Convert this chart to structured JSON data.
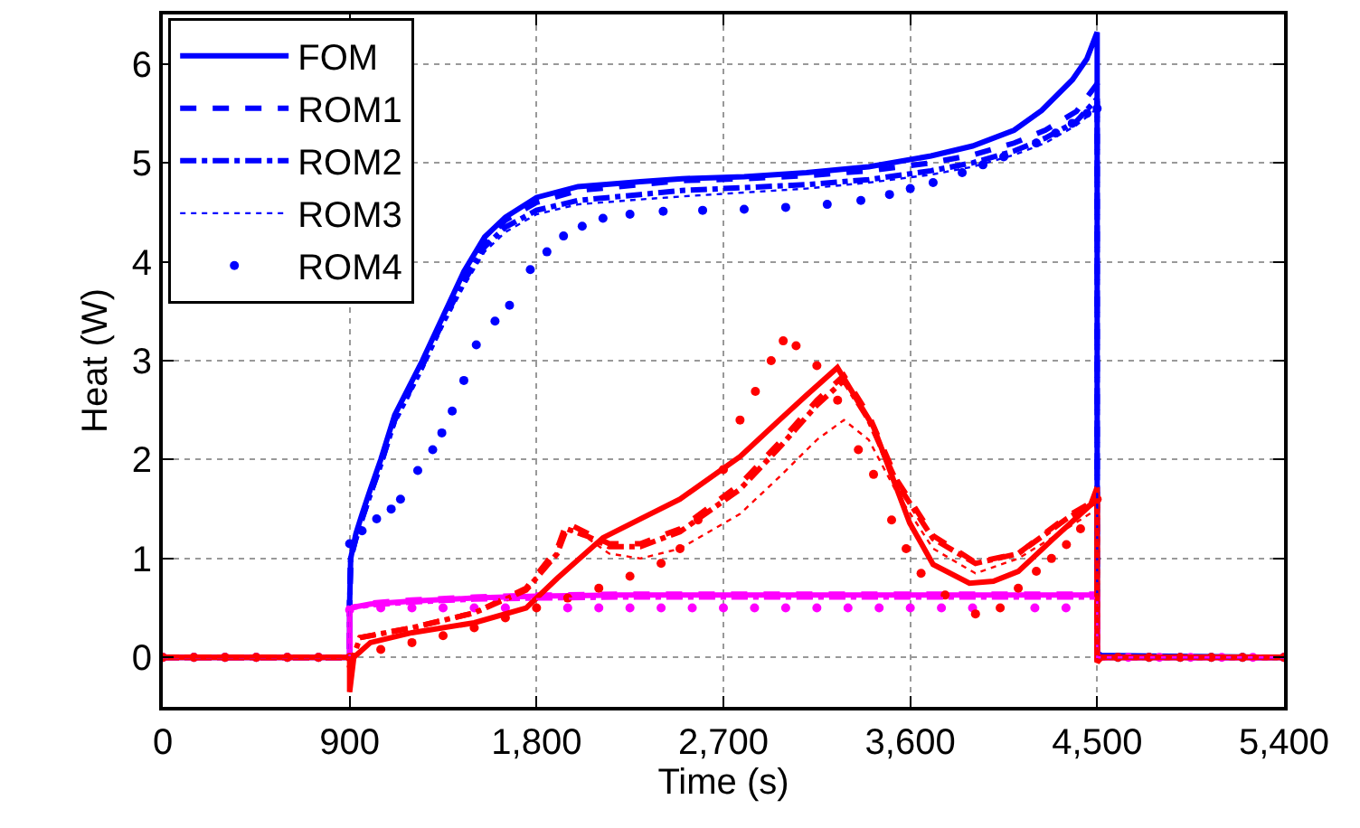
{
  "chart_data": {
    "type": "line",
    "xlabel": "Time (s)",
    "ylabel": "Heat (W)",
    "xlim": [
      0,
      5400
    ],
    "xticks": [
      0,
      900,
      {
        "value": 1800,
        "label": "1,800"
      },
      {
        "value": 2700,
        "label": "2,700"
      },
      {
        "value": 3600,
        "label": "3,600"
      },
      {
        "value": 4500,
        "label": "4,500"
      },
      {
        "value": 5400,
        "label": "5,400"
      }
    ],
    "ylim": [
      -0.5,
      6.5
    ],
    "yticks": [
      0,
      1,
      2,
      3,
      4,
      5,
      6
    ],
    "grid": true,
    "legend": "top left",
    "series": [
      {
        "name": "FOM",
        "color": "#0000ff",
        "line_style": "solid",
        "x": [
          0,
          900,
          900,
          905,
          930,
          960,
          1000,
          1050,
          1117,
          1250,
          1350,
          1450,
          1550,
          1650,
          1800,
          2000,
          2300,
          2500,
          2800,
          3100,
          3400,
          3700,
          3900,
          4100,
          4233,
          4381,
          4450,
          4500,
          4500,
          4520,
          5400
        ],
        "values": [
          0,
          0,
          0.55,
          1.0,
          1.25,
          1.45,
          1.7,
          2.0,
          2.45,
          3.0,
          3.45,
          3.9,
          4.25,
          4.45,
          4.65,
          4.76,
          4.81,
          4.84,
          4.86,
          4.9,
          4.96,
          5.07,
          5.17,
          5.33,
          5.53,
          5.84,
          6.05,
          6.32,
          0.05,
          0.02,
          0
        ]
      },
      {
        "name": "ROM1",
        "color": "#0000ff",
        "line_style": "dashed",
        "x": [
          0,
          900,
          900,
          905,
          930,
          960,
          1000,
          1050,
          1117,
          1250,
          1350,
          1450,
          1550,
          1650,
          1800,
          2000,
          2300,
          2500,
          2800,
          3100,
          3400,
          3700,
          3900,
          4100,
          4250,
          4400,
          4500,
          4500,
          5400
        ],
        "values": [
          0,
          0,
          0.55,
          1.0,
          1.2,
          1.4,
          1.65,
          1.95,
          2.4,
          2.95,
          3.4,
          3.85,
          4.2,
          4.42,
          4.6,
          4.72,
          4.78,
          4.82,
          4.84,
          4.87,
          4.92,
          5.0,
          5.08,
          5.2,
          5.33,
          5.52,
          5.8,
          0,
          0
        ]
      },
      {
        "name": "ROM2",
        "color": "#0000ff",
        "line_style": "dashdot",
        "x": [
          0,
          900,
          900,
          905,
          930,
          960,
          1000,
          1050,
          1117,
          1250,
          1350,
          1450,
          1550,
          1650,
          1800,
          2000,
          2300,
          2500,
          2800,
          3100,
          3400,
          3700,
          3900,
          4100,
          4250,
          4400,
          4500,
          4500,
          5400
        ],
        "values": [
          0,
          0,
          0.55,
          1.0,
          1.2,
          1.4,
          1.65,
          1.95,
          2.4,
          2.95,
          3.4,
          3.8,
          4.15,
          4.35,
          4.52,
          4.62,
          4.68,
          4.72,
          4.75,
          4.78,
          4.83,
          4.92,
          5.0,
          5.12,
          5.25,
          5.42,
          5.65,
          0,
          0
        ]
      },
      {
        "name": "ROM3",
        "color": "#0000ff",
        "line_style": "dotted",
        "x": [
          0,
          900,
          900,
          905,
          930,
          960,
          1000,
          1050,
          1117,
          1250,
          1350,
          1450,
          1550,
          1650,
          1800,
          2000,
          2300,
          2500,
          2800,
          3100,
          3400,
          3700,
          3900,
          4100,
          4250,
          4400,
          4500,
          4500,
          5400
        ],
        "values": [
          0,
          0,
          0.55,
          1.0,
          1.2,
          1.4,
          1.62,
          1.92,
          2.35,
          2.9,
          3.35,
          3.75,
          4.1,
          4.3,
          4.48,
          4.58,
          4.63,
          4.66,
          4.7,
          4.74,
          4.8,
          4.88,
          4.96,
          5.08,
          5.2,
          5.38,
          5.55,
          0,
          0
        ]
      },
      {
        "name": "ROM4",
        "type": "scatter",
        "marker": "circle",
        "color": "#0000ff",
        "x": [
          0,
          150,
          300,
          450,
          600,
          750,
          900,
          960,
          1030,
          1100,
          1145,
          1228,
          1300,
          1344,
          1394,
          1450,
          1510,
          1600,
          1670,
          1770,
          1850,
          1930,
          2020,
          2120,
          2250,
          2410,
          2600,
          2800,
          3000,
          3200,
          3362,
          3500,
          3600,
          3710,
          3850,
          3950,
          4050,
          4207,
          4300,
          4380,
          4451,
          4500,
          4600,
          4750,
          4900,
          5050,
          5200,
          5400
        ],
        "values": [
          0,
          0,
          0,
          0,
          0,
          0,
          1.15,
          1.28,
          1.4,
          1.5,
          1.6,
          1.89,
          2.1,
          2.27,
          2.49,
          2.8,
          3.16,
          3.4,
          3.56,
          3.92,
          4.1,
          4.26,
          4.36,
          4.44,
          4.48,
          4.51,
          4.52,
          4.53,
          4.55,
          4.58,
          4.62,
          4.68,
          4.74,
          4.8,
          4.9,
          4.98,
          5.06,
          5.2,
          5.3,
          5.4,
          5.5,
          5.55,
          0,
          0,
          0,
          0,
          0,
          0
        ]
      },
      {
        "color": "#ff00ff",
        "line_style": "solid",
        "x": [
          0,
          900,
          900,
          1000,
          1200,
          1500,
          1800,
          2200,
          2700,
          3200,
          3700,
          4200,
          4500,
          4500,
          5400
        ],
        "values": [
          0,
          0,
          0.5,
          0.54,
          0.57,
          0.6,
          0.62,
          0.63,
          0.63,
          0.63,
          0.63,
          0.63,
          0.63,
          0,
          0
        ]
      },
      {
        "color": "#ff00ff",
        "line_style": "dashed",
        "x": [
          0,
          900,
          900,
          1000,
          1200,
          1500,
          1800,
          2200,
          2700,
          3200,
          3700,
          4200,
          4500,
          4500,
          5400
        ],
        "values": [
          0,
          0,
          0.5,
          0.55,
          0.58,
          0.61,
          0.63,
          0.64,
          0.64,
          0.64,
          0.64,
          0.64,
          0.64,
          0,
          0
        ]
      },
      {
        "color": "#ff00ff",
        "line_style": "dashdot",
        "x": [
          0,
          900,
          900,
          1000,
          1200,
          1500,
          1800,
          2200,
          2700,
          3200,
          3700,
          4200,
          4500,
          4500,
          5400
        ],
        "values": [
          0,
          0,
          0.5,
          0.53,
          0.56,
          0.59,
          0.6,
          0.61,
          0.61,
          0.61,
          0.61,
          0.61,
          0.61,
          0,
          0
        ]
      },
      {
        "color": "#ff00ff",
        "line_style": "dotted",
        "x": [
          0,
          900,
          900,
          1000,
          1200,
          1500,
          1800,
          2200,
          2700,
          3200,
          3700,
          4200,
          4500,
          4500,
          5400
        ],
        "values": [
          0,
          0,
          0.5,
          0.52,
          0.55,
          0.58,
          0.59,
          0.6,
          0.6,
          0.6,
          0.6,
          0.6,
          0.6,
          0,
          0
        ]
      },
      {
        "type": "scatter",
        "marker": "circle",
        "color": "#ff00ff",
        "x": [
          0,
          150,
          300,
          450,
          600,
          750,
          900,
          1050,
          1200,
          1350,
          1500,
          1650,
          1800,
          1950,
          2100,
          2250,
          2400,
          2550,
          2700,
          2850,
          3000,
          3150,
          3300,
          3450,
          3600,
          3750,
          3900,
          4050,
          4200,
          4350,
          4500,
          4650,
          4800,
          4950,
          5100,
          5250,
          5400
        ],
        "values": [
          0,
          0,
          0,
          0,
          0,
          0,
          0.48,
          0.5,
          0.5,
          0.5,
          0.5,
          0.5,
          null,
          0.5,
          0.5,
          0.5,
          0.5,
          0.5,
          0.5,
          0.5,
          0.5,
          0.5,
          0.5,
          0.5,
          0.5,
          0.5,
          0.5,
          null,
          0.5,
          0.5,
          null,
          0,
          0,
          0,
          0,
          0,
          0
        ]
      },
      {
        "color": "#ff0000",
        "line_style": "solid",
        "x": [
          0,
          900,
          900,
          920,
          1000,
          1200,
          1500,
          1750,
          1900,
          2120,
          2300,
          2491,
          2780,
          2970,
          3100,
          3249,
          3423,
          3597,
          3710,
          3885,
          4000,
          4120,
          4294,
          4468,
          4500,
          4500,
          4520,
          5400
        ],
        "values": [
          0,
          0,
          -0.35,
          0.0,
          0.15,
          0.25,
          0.35,
          0.5,
          0.8,
          1.21,
          1.4,
          1.6,
          2.03,
          2.4,
          2.65,
          2.93,
          2.33,
          1.36,
          0.94,
          0.75,
          0.77,
          0.87,
          1.21,
          1.54,
          1.72,
          -0.05,
          0,
          0
        ]
      },
      {
        "color": "#ff0000",
        "line_style": "dashed",
        "x": [
          0,
          900,
          900,
          950,
          1200,
          1500,
          1750,
          1900,
          1945,
          2050,
          2150,
          2300,
          2491,
          2780,
          2982,
          3150,
          3280,
          3400,
          3539,
          3710,
          3914,
          4120,
          4352,
          4500,
          4500,
          4520,
          5400
        ],
        "values": [
          0,
          0,
          -0.1,
          0.2,
          0.3,
          0.45,
          0.7,
          1.1,
          1.36,
          1.25,
          1.15,
          1.15,
          1.3,
          1.75,
          2.2,
          2.6,
          2.85,
          2.45,
          1.78,
          1.23,
          0.96,
          1.05,
          1.42,
          1.6,
          -0.05,
          0,
          0
        ]
      },
      {
        "color": "#ff0000",
        "line_style": "dashdot",
        "x": [
          0,
          900,
          900,
          950,
          1200,
          1500,
          1750,
          1900,
          1945,
          2050,
          2150,
          2300,
          2491,
          2780,
          2982,
          3150,
          3280,
          3400,
          3539,
          3710,
          3914,
          4120,
          4352,
          4500,
          4500,
          4520,
          5400
        ],
        "values": [
          0,
          0,
          -0.1,
          0.2,
          0.3,
          0.45,
          0.68,
          1.05,
          1.3,
          1.22,
          1.12,
          1.12,
          1.27,
          1.7,
          2.15,
          2.55,
          2.8,
          2.4,
          1.75,
          1.2,
          0.95,
          1.05,
          1.4,
          1.58,
          -0.05,
          0,
          0
        ]
      },
      {
        "color": "#ff0000",
        "line_style": "dotted",
        "x": [
          0,
          900,
          900,
          950,
          1200,
          1500,
          1750,
          1900,
          1945,
          2050,
          2150,
          2300,
          2491,
          2780,
          2982,
          3150,
          3280,
          3400,
          3539,
          3710,
          3914,
          4120,
          4352,
          4500,
          4500,
          4520,
          5400
        ],
        "values": [
          0,
          0,
          -0.1,
          0.2,
          0.3,
          0.45,
          0.7,
          1.05,
          1.3,
          1.2,
          1.05,
          1.0,
          1.1,
          1.45,
          1.85,
          2.2,
          2.4,
          2.2,
          1.65,
          1.1,
          0.85,
          1.0,
          1.3,
          1.5,
          -0.05,
          0,
          0
        ]
      },
      {
        "type": "scatter",
        "marker": "circle",
        "color": "#ff0000",
        "x": [
          0,
          150,
          300,
          450,
          600,
          750,
          900,
          1050,
          1200,
          1350,
          1500,
          1650,
          1800,
          1950,
          2100,
          2250,
          2400,
          2491,
          2578,
          2700,
          2780,
          2854,
          2930,
          2988,
          3050,
          3150,
          3250,
          3350,
          3423,
          3510,
          3580,
          3652,
          3768,
          3914,
          4033,
          4120,
          4207,
          4280,
          4352,
          4420,
          4500,
          4600,
          4750,
          4900,
          5050,
          5200,
          5400
        ],
        "values": [
          0,
          0,
          0,
          0,
          0,
          0,
          0,
          0.08,
          0.15,
          0.22,
          0.3,
          0.4,
          0.5,
          0.6,
          0.7,
          0.82,
          0.95,
          1.1,
          1.39,
          1.9,
          2.4,
          2.69,
          3.0,
          3.2,
          3.15,
          2.95,
          2.6,
          2.1,
          1.85,
          1.39,
          1.1,
          0.85,
          0.63,
          0.44,
          0.5,
          0.7,
          0.87,
          1.0,
          1.14,
          1.3,
          1.6,
          0,
          0,
          0,
          0,
          0,
          0
        ]
      }
    ]
  }
}
